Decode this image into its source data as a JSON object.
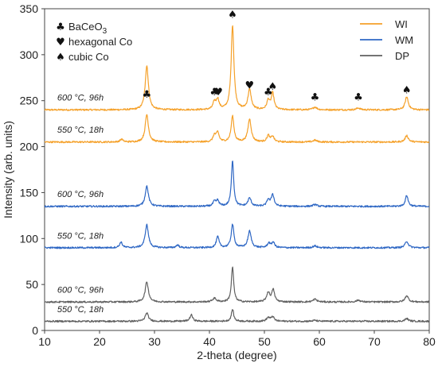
{
  "chart_data": {
    "type": "line",
    "xlabel": "2-theta (degree)",
    "ylabel": "Intensity (arb. units)",
    "xlim": [
      10,
      80
    ],
    "ylim": [
      0,
      350
    ],
    "x_ticks": [
      "10",
      "20",
      "30",
      "40",
      "50",
      "60",
      "70",
      "80"
    ],
    "y_ticks": [
      "0",
      "50",
      "100",
      "150",
      "200",
      "250",
      "300",
      "350"
    ],
    "legend": {
      "placement": "top-right",
      "entries": [
        {
          "label": "WI",
          "color": "#F5A12A"
        },
        {
          "label": "WM",
          "color": "#2E67C4"
        },
        {
          "label": "DP",
          "color": "#606060"
        }
      ]
    },
    "phase_legend": [
      {
        "symbol": "♣",
        "label": "BaCeO",
        "subscript": "3"
      },
      {
        "symbol": "♥",
        "label": "hexagonal Co"
      },
      {
        "symbol": "♠",
        "label": "cubic Co"
      }
    ],
    "series": [
      {
        "name": "WI",
        "condition": "600 °C, 96h",
        "color": "#F5A12A",
        "baseline": 240,
        "peaks": [
          [
            28.6,
            48,
            0.35
          ],
          [
            40.9,
            8,
            0.3
          ],
          [
            41.5,
            11,
            0.3
          ],
          [
            44.2,
            92,
            0.3
          ],
          [
            47.3,
            22,
            0.35
          ],
          [
            50.7,
            10,
            0.3
          ],
          [
            51.5,
            18,
            0.3
          ],
          [
            59.2,
            3,
            0.4
          ],
          [
            67.1,
            2,
            0.4
          ],
          [
            75.9,
            14,
            0.35
          ]
        ]
      },
      {
        "name": "WI",
        "condition": "550 °C, 18h",
        "color": "#F5A12A",
        "baseline": 205,
        "peaks": [
          [
            24.0,
            3,
            0.3
          ],
          [
            28.6,
            30,
            0.35
          ],
          [
            40.9,
            7,
            0.3
          ],
          [
            41.5,
            10,
            0.3
          ],
          [
            44.2,
            28,
            0.3
          ],
          [
            47.3,
            25,
            0.35
          ],
          [
            50.7,
            7,
            0.3
          ],
          [
            51.5,
            6,
            0.3
          ],
          [
            59.2,
            2,
            0.4
          ],
          [
            75.9,
            7,
            0.35
          ]
        ]
      },
      {
        "name": "WM",
        "condition": "600 °C, 96h",
        "color": "#2E67C4",
        "baseline": 135,
        "peaks": [
          [
            28.6,
            22,
            0.35
          ],
          [
            40.9,
            5,
            0.3
          ],
          [
            41.5,
            6,
            0.3
          ],
          [
            44.2,
            50,
            0.25
          ],
          [
            47.3,
            9,
            0.35
          ],
          [
            50.7,
            7,
            0.3
          ],
          [
            51.5,
            13,
            0.3
          ],
          [
            59.2,
            2,
            0.4
          ],
          [
            75.9,
            12,
            0.3
          ]
        ]
      },
      {
        "name": "WM",
        "condition": "550 °C, 18h",
        "color": "#2E67C4",
        "baseline": 90,
        "peaks": [
          [
            23.9,
            6,
            0.3
          ],
          [
            28.6,
            25,
            0.35
          ],
          [
            34.2,
            3,
            0.3
          ],
          [
            41.5,
            12,
            0.3
          ],
          [
            44.2,
            25,
            0.3
          ],
          [
            47.3,
            18,
            0.35
          ],
          [
            50.8,
            5,
            0.3
          ],
          [
            51.6,
            6,
            0.3
          ],
          [
            59.2,
            2,
            0.4
          ],
          [
            75.9,
            7,
            0.35
          ]
        ]
      },
      {
        "name": "DP",
        "condition": "600 °C, 96h",
        "color": "#606060",
        "baseline": 31,
        "peaks": [
          [
            28.6,
            22,
            0.35
          ],
          [
            40.9,
            4,
            0.4
          ],
          [
            44.2,
            38,
            0.25
          ],
          [
            50.7,
            10,
            0.35
          ],
          [
            51.6,
            13,
            0.3
          ],
          [
            59.2,
            3,
            0.4
          ],
          [
            67.1,
            2,
            0.4
          ],
          [
            75.9,
            7,
            0.35
          ]
        ]
      },
      {
        "name": "DP",
        "condition": "550 °C, 18h",
        "color": "#606060",
        "baseline": 10,
        "peaks": [
          [
            28.6,
            9,
            0.35
          ],
          [
            36.7,
            7,
            0.3
          ],
          [
            44.2,
            13,
            0.25
          ],
          [
            50.7,
            4,
            0.35
          ],
          [
            51.5,
            5,
            0.3
          ],
          [
            59.2,
            1,
            0.4
          ],
          [
            75.9,
            3,
            0.35
          ]
        ]
      }
    ],
    "phase_markers": [
      {
        "symbol": "♣",
        "x": 28.6,
        "y": 253
      },
      {
        "symbol": "♣",
        "x": 40.9,
        "y": 256
      },
      {
        "symbol": "♥",
        "x": 41.6,
        "y": 256
      },
      {
        "symbol": "♠",
        "x": 44.2,
        "y": 340
      },
      {
        "symbol": "♥",
        "x": 47.3,
        "y": 263
      },
      {
        "symbol": "♣",
        "x": 50.7,
        "y": 256
      },
      {
        "symbol": "♠",
        "x": 51.5,
        "y": 262
      },
      {
        "symbol": "♣",
        "x": 59.2,
        "y": 250
      },
      {
        "symbol": "♣",
        "x": 67.1,
        "y": 250
      },
      {
        "symbol": "♠",
        "x": 75.9,
        "y": 258
      }
    ]
  }
}
